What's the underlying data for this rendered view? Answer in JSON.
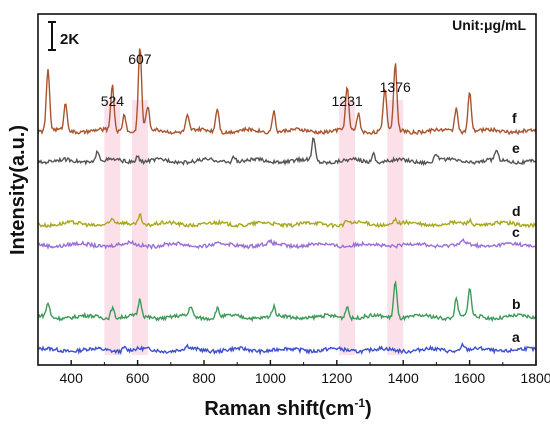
{
  "chart_data": {
    "type": "line",
    "xlabel": "Raman shift(cm",
    "xlabel_sup": "-1",
    "xlabel_end": ")",
    "ylabel": "Intensity(a.u.)",
    "xlim": [
      300,
      1800
    ],
    "x_ticks": [
      400,
      600,
      800,
      1000,
      1200,
      1400,
      1600,
      1800
    ],
    "unit_note": "Unit:μg/mL",
    "scale_bar_label": "2K",
    "highlight_color": "#f7c6d8",
    "peak_labels": [
      {
        "x": 524,
        "text": "524"
      },
      {
        "x": 607,
        "text": "607"
      },
      {
        "x": 1231,
        "text": "1231"
      },
      {
        "x": 1376,
        "text": "1376"
      }
    ],
    "series": [
      {
        "name": "a",
        "color": "#3b4fd0",
        "offset": 0
      },
      {
        "name": "b",
        "color": "#3e9a58",
        "offset": 1.1
      },
      {
        "name": "c",
        "color": "#9a6fd6",
        "offset": 3.5
      },
      {
        "name": "d",
        "color": "#a8a81a",
        "offset": 4.2
      },
      {
        "name": "e",
        "color": "#555555",
        "offset": 6.3
      },
      {
        "name": "f",
        "color": "#a8552e",
        "offset": 7.3
      }
    ],
    "peaks": {
      "a": [
        [
          560,
          0.12
        ],
        [
          750,
          0.1
        ],
        [
          1100,
          0.08
        ],
        [
          1580,
          0.2
        ]
      ],
      "b": [
        [
          330,
          0.45
        ],
        [
          524,
          0.35
        ],
        [
          607,
          0.55
        ],
        [
          760,
          0.35
        ],
        [
          840,
          0.3
        ],
        [
          1010,
          0.3
        ],
        [
          1231,
          0.4
        ],
        [
          1376,
          1.2
        ],
        [
          1560,
          0.6
        ],
        [
          1600,
          0.9
        ]
      ],
      "c": [
        [
          580,
          0.08
        ],
        [
          1000,
          0.06
        ],
        [
          1580,
          0.1
        ]
      ],
      "d": [
        [
          524,
          0.15
        ],
        [
          607,
          0.35
        ],
        [
          1231,
          0.12
        ],
        [
          1376,
          0.15
        ],
        [
          1600,
          0.15
        ]
      ],
      "e": [
        [
          480,
          0.35
        ],
        [
          600,
          0.2
        ],
        [
          890,
          0.2
        ],
        [
          1130,
          0.75
        ],
        [
          1310,
          0.3
        ],
        [
          1500,
          0.25
        ],
        [
          1680,
          0.3
        ]
      ],
      "f": [
        [
          330,
          2.0
        ],
        [
          383,
          0.9
        ],
        [
          524,
          1.5
        ],
        [
          560,
          0.6
        ],
        [
          607,
          2.8
        ],
        [
          630,
          0.8
        ],
        [
          750,
          0.5
        ],
        [
          840,
          0.8
        ],
        [
          1010,
          0.7
        ],
        [
          1231,
          1.4
        ],
        [
          1265,
          0.6
        ],
        [
          1345,
          1.4
        ],
        [
          1376,
          2.2
        ],
        [
          1560,
          0.8
        ],
        [
          1600,
          1.3
        ]
      ]
    }
  }
}
